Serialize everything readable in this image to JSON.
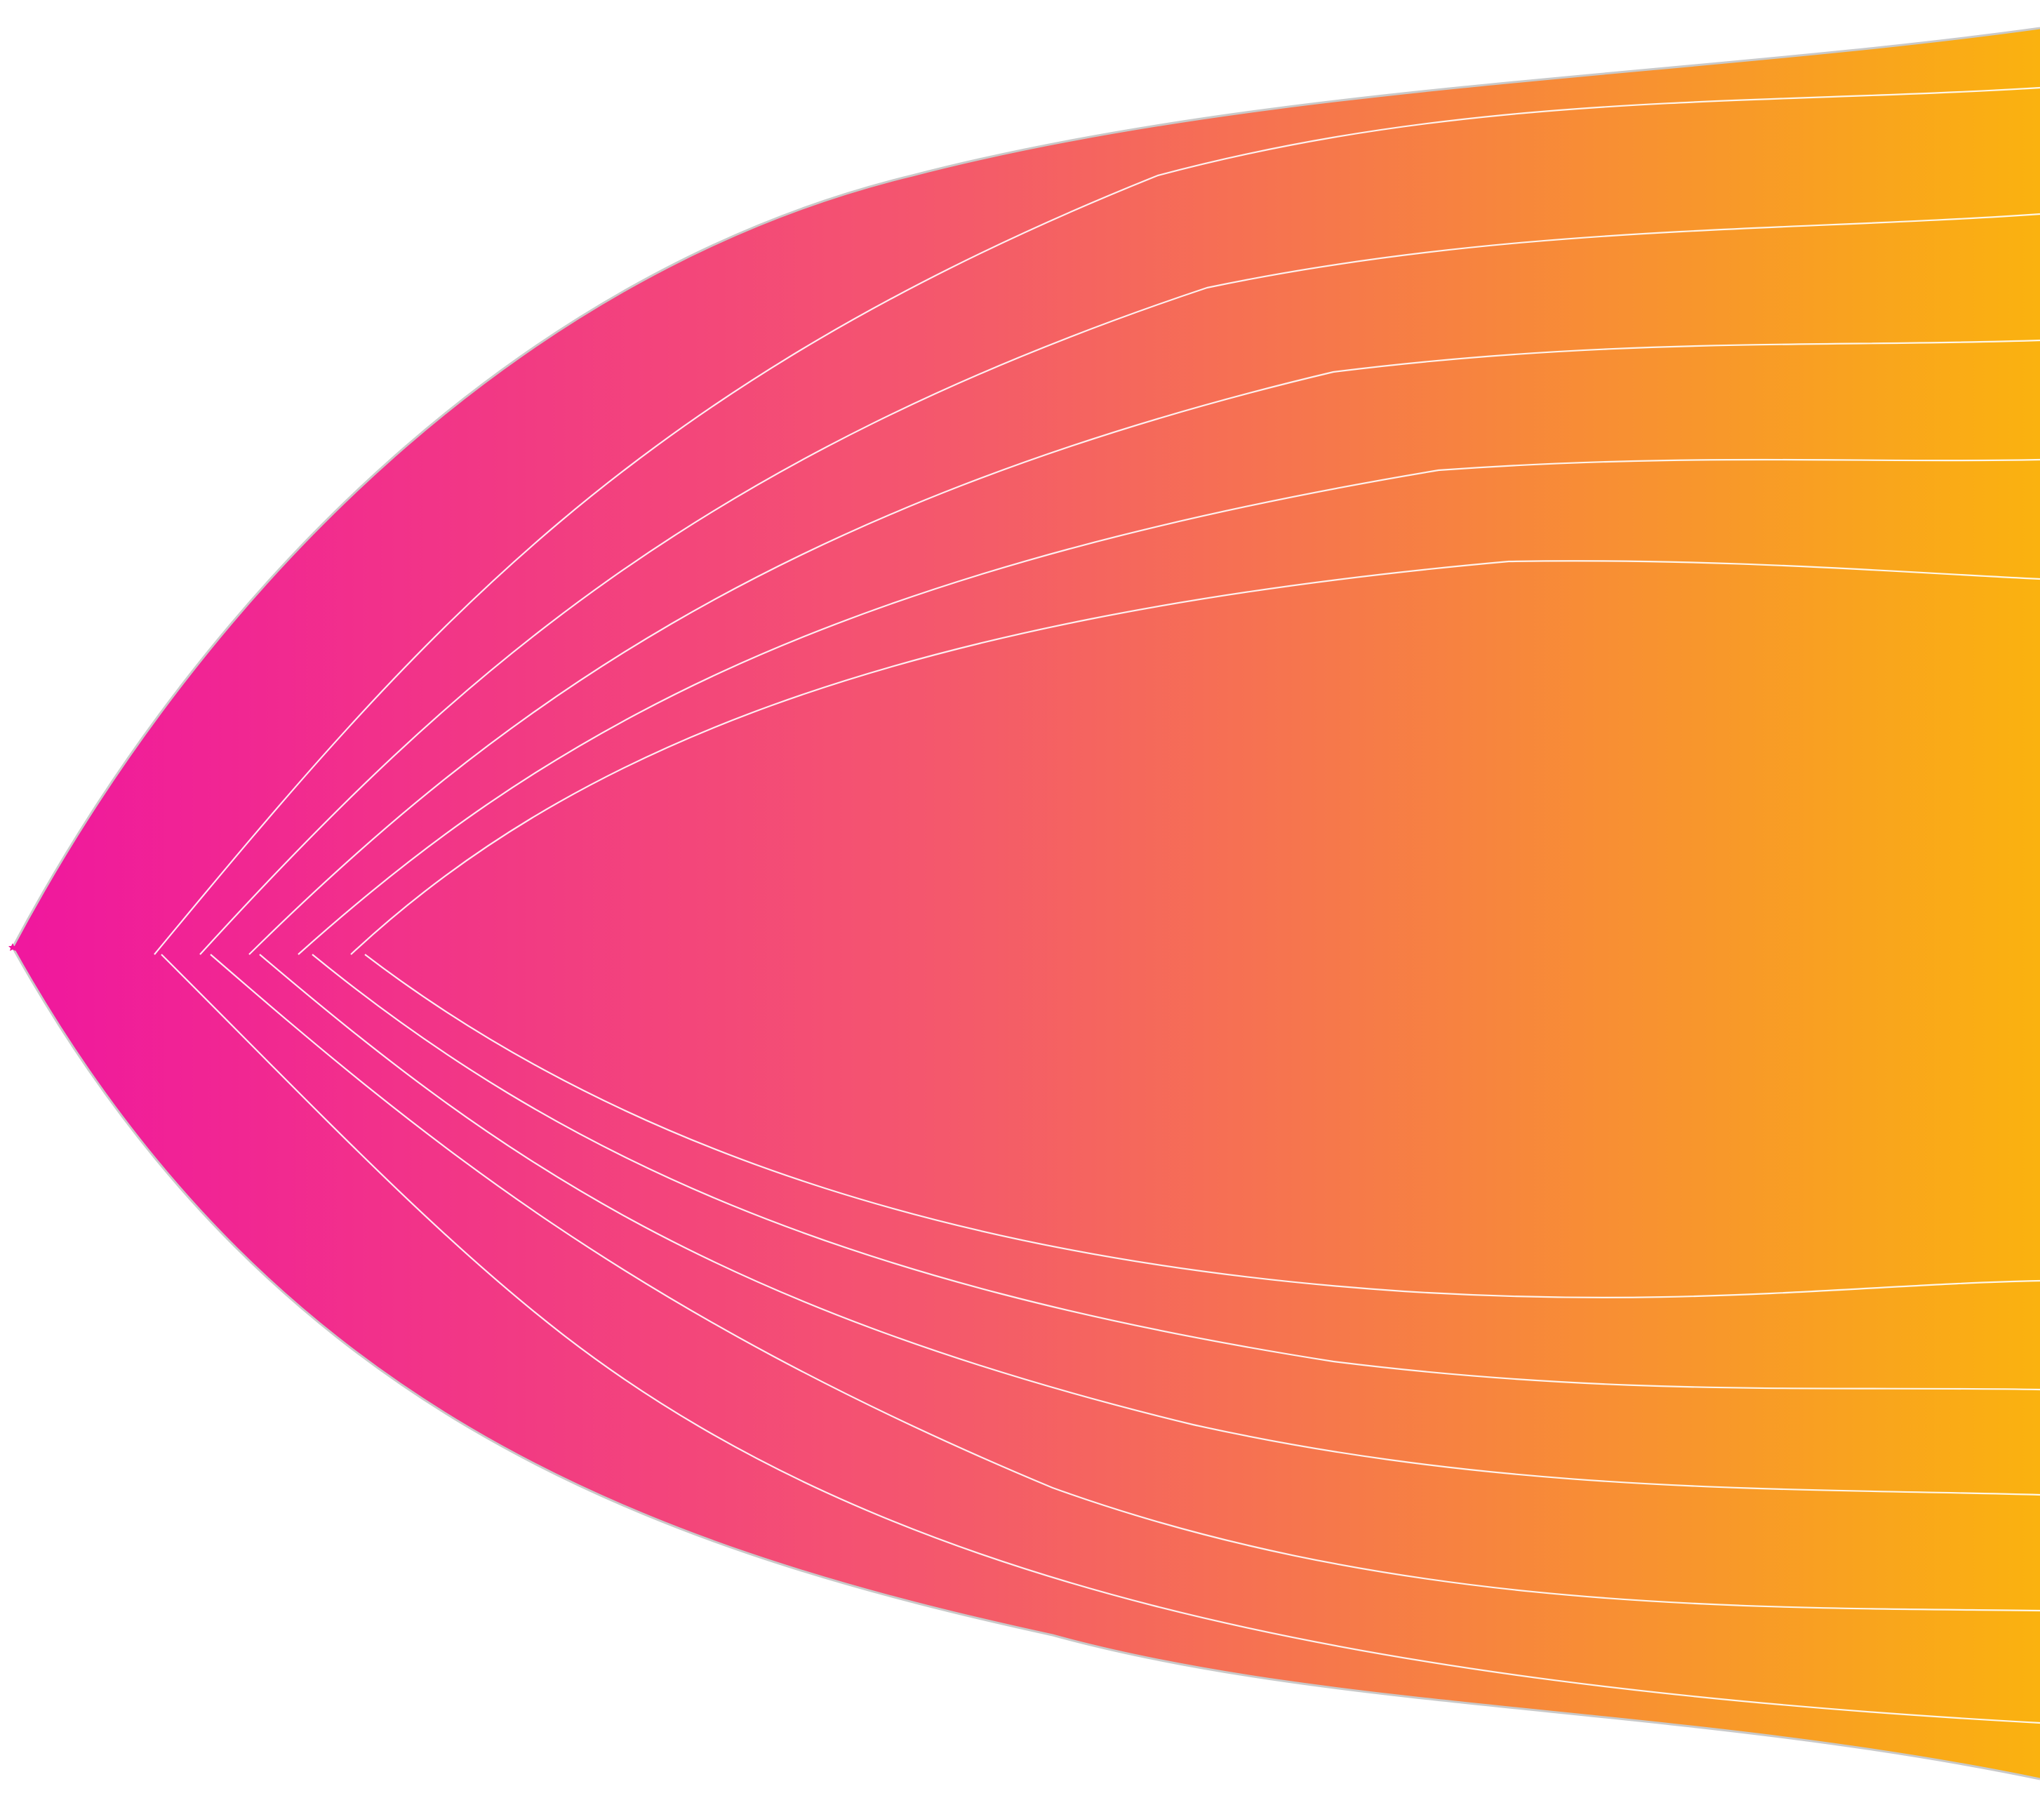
{
  "graphic": {
    "gradient_start": "#f0169f",
    "gradient_mid": "#f4566e",
    "gradient_end": "#fab20f",
    "outline_color": "#c9c9c9",
    "line_color": "#ffffff",
    "curve_count": 12,
    "markers": [
      "star-icon"
    ]
  }
}
